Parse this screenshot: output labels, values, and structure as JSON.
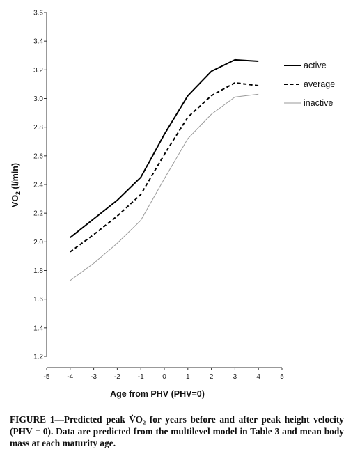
{
  "chart_data": {
    "type": "line",
    "xlabel": "Age from PHV (PHV=0)",
    "ylabel": {
      "prefix": "VO",
      "subscript": "2",
      "suffix": " (l/min)"
    },
    "xlim": [
      -5,
      5
    ],
    "ylim": [
      1.2,
      3.6
    ],
    "xticks": [
      "-5",
      "-4",
      "-3",
      "-2",
      "-1",
      "0",
      "1",
      "2",
      "3",
      "4",
      "5"
    ],
    "yticks": [
      "1.2",
      "1.4",
      "1.6",
      "1.8",
      "2.0",
      "2.2",
      "2.4",
      "2.6",
      "2.8",
      "3.0",
      "3.2",
      "3.4",
      "3.6"
    ],
    "grid": false,
    "legend_position": "top-right",
    "x": [
      -4,
      -3,
      -2,
      -1,
      0,
      1,
      2,
      3,
      4
    ],
    "series": [
      {
        "name": "active",
        "style": "solid",
        "color": "#000000",
        "values": [
          2.03,
          2.16,
          2.29,
          2.45,
          2.75,
          3.02,
          3.19,
          3.27,
          3.26
        ]
      },
      {
        "name": "average",
        "style": "dashed",
        "color": "#000000",
        "values": [
          1.93,
          2.05,
          2.18,
          2.33,
          2.61,
          2.87,
          3.02,
          3.11,
          3.09
        ]
      },
      {
        "name": "inactive",
        "style": "dotted",
        "color": "#9a9a9a",
        "values": [
          1.73,
          1.85,
          1.99,
          2.15,
          2.44,
          2.72,
          2.89,
          3.01,
          3.03
        ]
      }
    ]
  },
  "caption": "FIGURE 1—Predicted peak V̇O₂ for years before and after peak height velocity (PHV = 0). Data are predicted from the multilevel model in Table 3 and mean body mass at each maturity age."
}
